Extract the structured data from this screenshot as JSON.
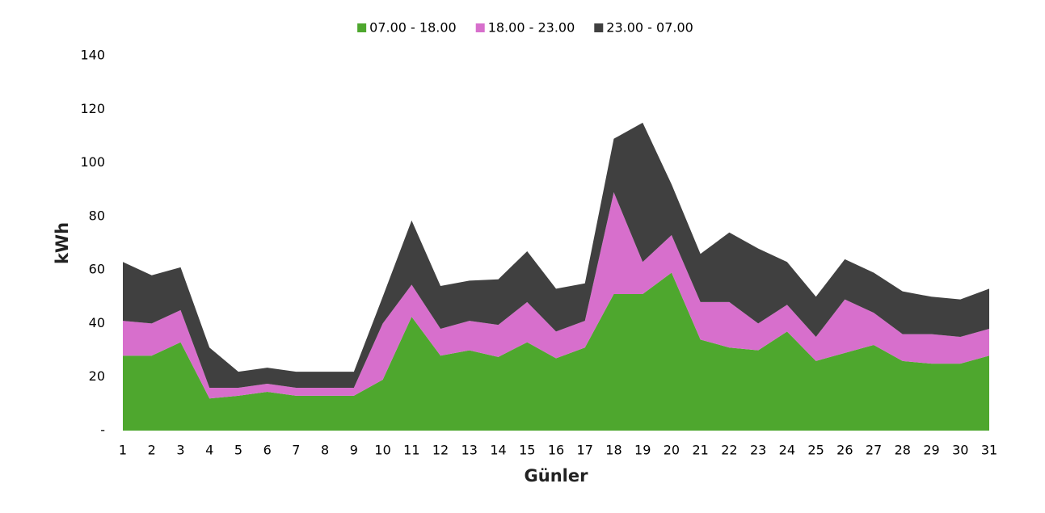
{
  "chart_data": {
    "type": "stacked-area",
    "x_label": "Günler",
    "y_label": "kWh",
    "categories": [
      "1",
      "2",
      "3",
      "4",
      "5",
      "6",
      "7",
      "8",
      "9",
      "10",
      "11",
      "12",
      "13",
      "14",
      "15",
      "16",
      "17",
      "18",
      "19",
      "20",
      "21",
      "22",
      "23",
      "24",
      "25",
      "26",
      "27",
      "28",
      "29",
      "30",
      "31"
    ],
    "series": [
      {
        "name": "07.00 - 18.00",
        "color": "#4ea72e",
        "values": [
          28,
          28,
          33,
          12,
          13,
          14.5,
          13,
          13,
          13,
          19,
          42.5,
          28,
          30,
          27.5,
          33,
          27,
          31,
          51,
          51,
          59,
          34,
          31,
          30,
          37,
          26,
          29,
          32,
          26,
          25,
          25,
          28
        ]
      },
      {
        "name": "18.00 - 23.00",
        "color": "#d76fcc",
        "values": [
          13,
          12,
          12,
          4,
          3,
          3,
          3,
          3,
          3,
          21,
          12,
          10,
          11,
          12,
          15,
          10,
          10,
          38,
          12,
          14,
          14,
          17,
          10,
          10,
          9,
          20,
          12,
          10,
          11,
          10,
          10
        ]
      },
      {
        "name": "23.00 - 07.00",
        "color": "#404040",
        "values": [
          22,
          18,
          16,
          15,
          6,
          6,
          6,
          6,
          6,
          10,
          24,
          16,
          15,
          17,
          19,
          16,
          14,
          20,
          52,
          19,
          18,
          26,
          28,
          16,
          15,
          15,
          15,
          16,
          14,
          14,
          15
        ]
      }
    ],
    "ylim": [
      0,
      140
    ],
    "yticks": [
      {
        "value": 0,
        "label": "-"
      },
      20,
      40,
      60,
      80,
      100,
      120,
      140
    ],
    "legend": "top"
  }
}
